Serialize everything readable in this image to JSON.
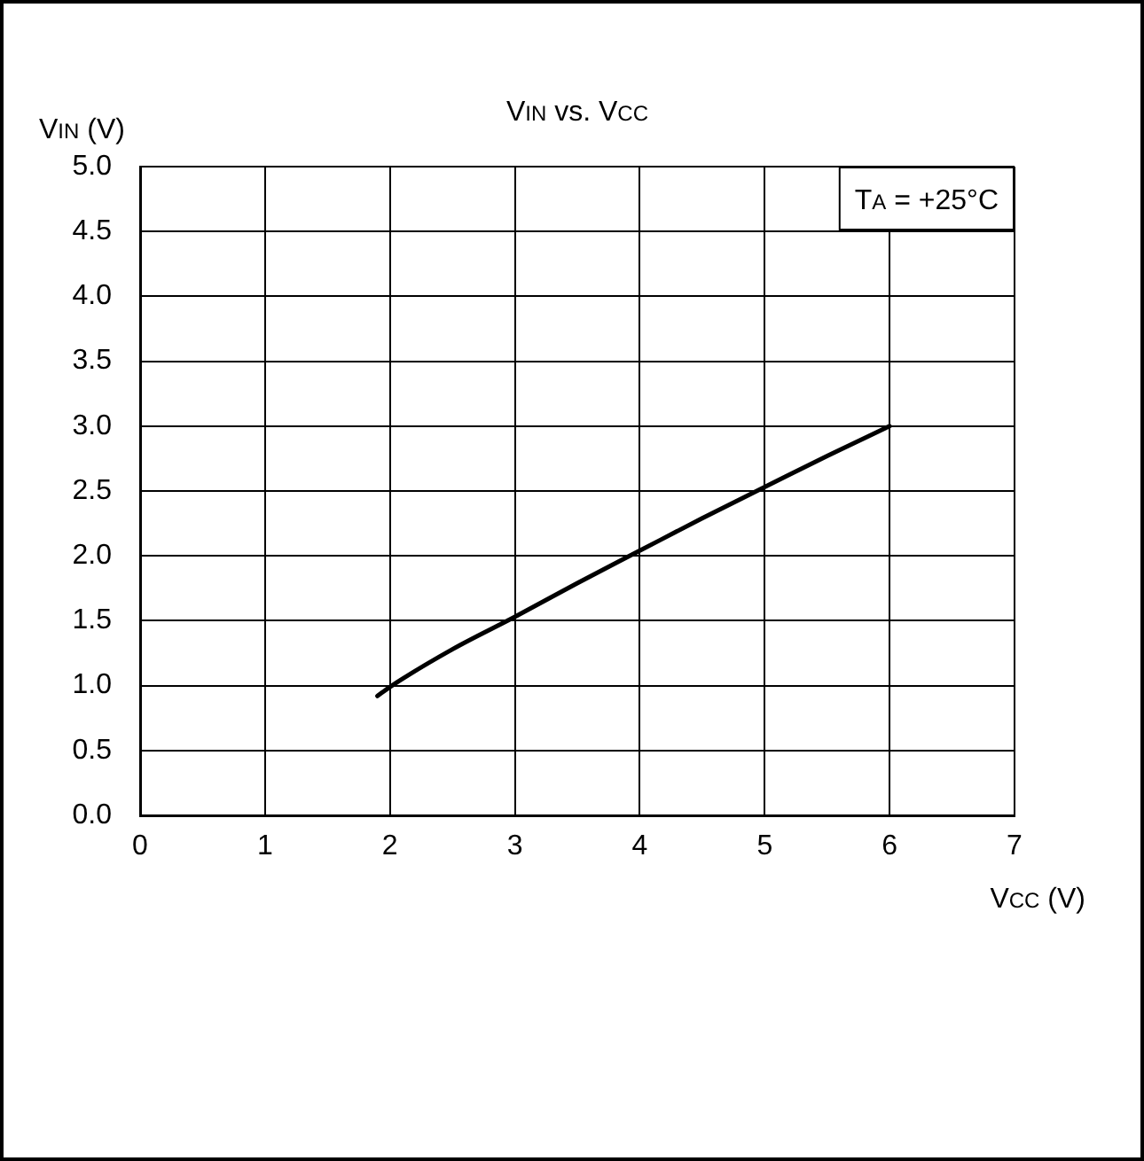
{
  "chart_data": {
    "type": "line",
    "title": "V$_{IN}$ vs. V$_{CC}$",
    "xlabel": "V$_{CC}$ (V)",
    "ylabel": "V$_{IN}$ (V)",
    "annotations": [
      "T$_{A}$ = +25°C"
    ],
    "x": [
      1.9,
      2,
      2.5,
      3,
      3.5,
      4,
      4.5,
      5,
      5.5,
      6
    ],
    "series": [
      {
        "color": "#000000",
        "values": [
          0.92,
          0.99,
          1.28,
          1.53,
          1.79,
          2.04,
          2.29,
          2.53,
          2.77,
          3.0
        ]
      }
    ],
    "xlim": [
      0,
      7
    ],
    "xticks": [
      0,
      1,
      2,
      3,
      4,
      5,
      6,
      7
    ],
    "ylim": [
      0,
      5
    ],
    "yticks": [
      {
        "value": 0,
        "label": "0.0"
      },
      0.5,
      {
        "value": 1,
        "label": "1.0"
      },
      1.5,
      {
        "value": 2,
        "label": "2.0"
      },
      2.5,
      {
        "value": 3,
        "label": "3.0"
      },
      3.5,
      {
        "value": 4,
        "label": "4.0"
      },
      4.5,
      {
        "value": 5,
        "label": "5.0"
      }
    ],
    "grid": true,
    "legend": false,
    "marker": "none",
    "line_style": "solid"
  }
}
